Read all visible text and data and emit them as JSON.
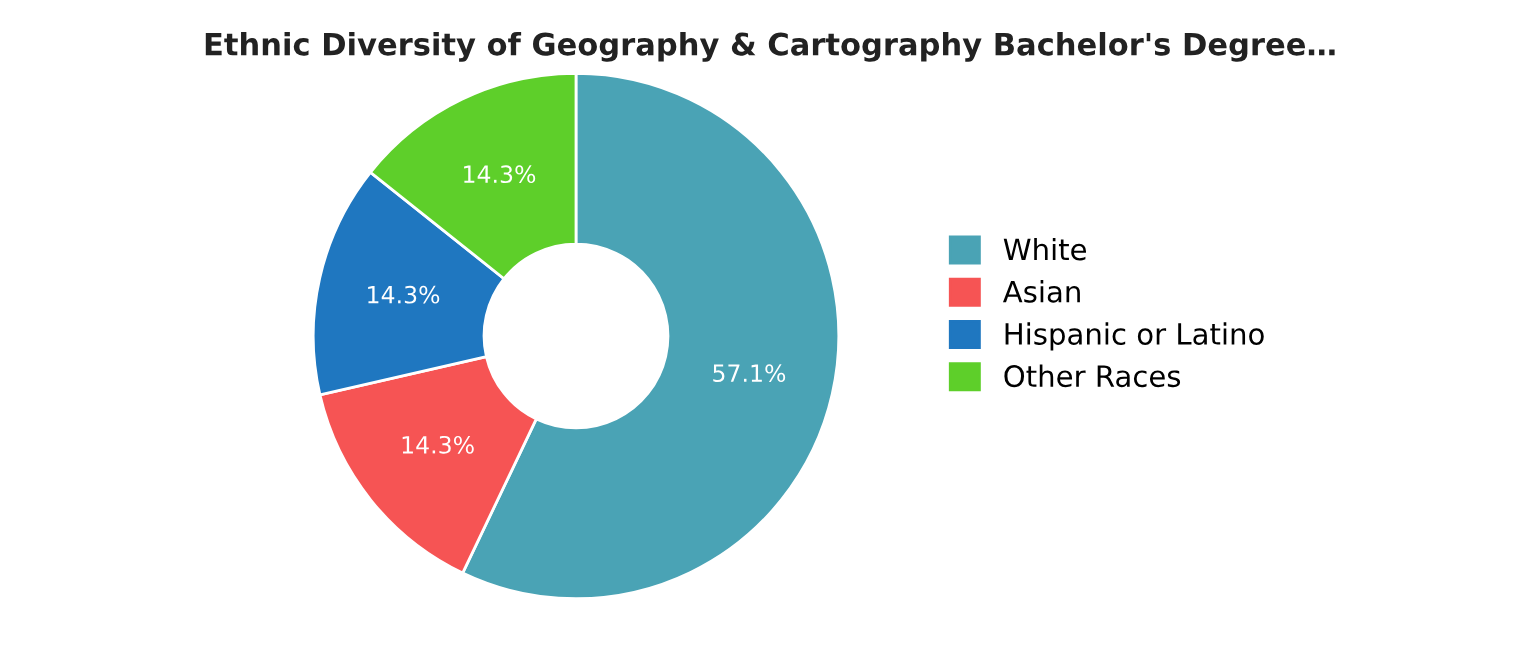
{
  "chart_data": {
    "type": "donut",
    "title": "Ethnic Diversity of Geography & Cartography Bachelor's Degree…",
    "categories": [
      "White",
      "Asian",
      "Hispanic or Latino",
      "Other Races"
    ],
    "values": [
      57.1,
      14.3,
      14.3,
      14.3
    ],
    "colors": [
      "#4aa3b5",
      "#f65454",
      "#1f77c0",
      "#5ecf2a"
    ],
    "value_labels": [
      "57.1%",
      "14.3%",
      "14.3%",
      "14.3%"
    ],
    "legend": "right"
  }
}
